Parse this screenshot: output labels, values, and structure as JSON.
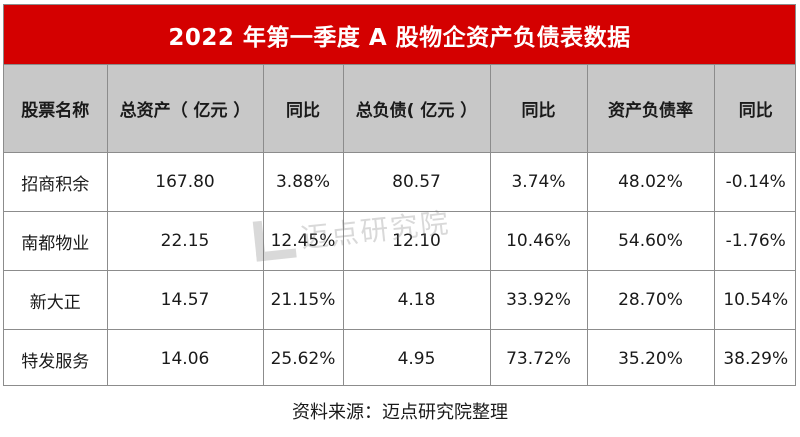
{
  "title": "2022 年第一季度 A 股物企资产负债表数据",
  "table": {
    "headers": [
      "股票名称",
      "总资产（ 亿元 ）",
      "同比",
      "总负债( 亿元 ）",
      "同比",
      "资产负债率",
      "同比"
    ],
    "rows": [
      [
        "招商积余",
        "167.80",
        "3.88%",
        "80.57",
        "3.74%",
        "48.02%",
        "-0.14%"
      ],
      [
        "南都物业",
        "22.15",
        "12.45%",
        "12.10",
        "10.46%",
        "54.60%",
        "-1.76%"
      ],
      [
        "新大正",
        "14.57",
        "21.15%",
        "4.18",
        "33.92%",
        "28.70%",
        "10.54%"
      ],
      [
        "特发服务",
        "14.06",
        "25.62%",
        "4.95",
        "73.72%",
        "35.20%",
        "38.29%"
      ]
    ]
  },
  "watermark": "迈点研究院",
  "source": "资料来源：迈点研究院整理",
  "colors": {
    "title_bg": "#d40000",
    "header_bg": "#c8c8c8",
    "border": "#8c8c8c"
  }
}
